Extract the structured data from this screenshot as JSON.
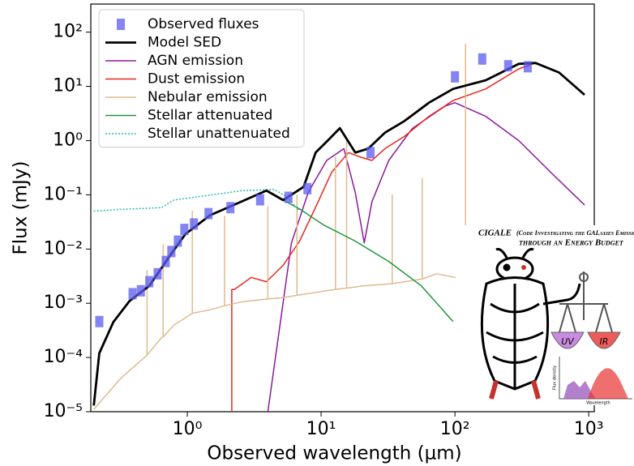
{
  "chart_data": {
    "type": "line",
    "xlabel": "Observed wavelength (μm)",
    "ylabel": "Flux (mJy)",
    "xscale": "log",
    "yscale": "log",
    "xlim": [
      0.19,
      1100
    ],
    "ylim": [
      1e-05,
      330
    ],
    "xticks": [
      {
        "value": 1,
        "label": "10⁰"
      },
      {
        "value": 10,
        "label": "10¹"
      },
      {
        "value": 100,
        "label": "10²"
      },
      {
        "value": 1000,
        "label": "10³"
      }
    ],
    "yticks": [
      {
        "value": 1e-05,
        "label": "10⁻⁵"
      },
      {
        "value": 0.0001,
        "label": "10⁻⁴"
      },
      {
        "value": 0.001,
        "label": "10⁻³"
      },
      {
        "value": 0.01,
        "label": "10⁻²"
      },
      {
        "value": 0.1,
        "label": "10⁻¹"
      },
      {
        "value": 1,
        "label": "10⁰"
      },
      {
        "value": 10,
        "label": "10¹"
      },
      {
        "value": 100,
        "label": "10²"
      }
    ],
    "legend": "upper left",
    "series": [
      {
        "name": "Observed fluxes",
        "color": "#5b5bf0",
        "style": "marker",
        "x": [
          0.22,
          0.39,
          0.45,
          0.52,
          0.6,
          0.69,
          0.76,
          0.85,
          0.95,
          1.12,
          1.44,
          2.1,
          3.5,
          5.7,
          7.9,
          23.4,
          100,
          160,
          250,
          350
        ],
        "values": [
          0.00046,
          0.0015,
          0.0017,
          0.0025,
          0.0035,
          0.0059,
          0.009,
          0.014,
          0.023,
          0.029,
          0.045,
          0.058,
          0.081,
          0.09,
          0.13,
          0.6,
          15,
          32,
          24,
          23
        ]
      },
      {
        "name": "Model SED",
        "color": "#000000",
        "style": "thick",
        "x": [
          0.2,
          0.22,
          0.28,
          0.37,
          0.52,
          0.74,
          0.97,
          1.48,
          2.6,
          3.9,
          5.2,
          7.4,
          9.1,
          11.2,
          13.8,
          18,
          22.5,
          30,
          42,
          64,
          97,
          170,
          300,
          400,
          600,
          930
        ],
        "values": [
          1.3e-05,
          0.00012,
          0.00045,
          0.0011,
          0.0021,
          0.0075,
          0.019,
          0.042,
          0.077,
          0.12,
          0.08,
          0.14,
          0.6,
          1,
          1.7,
          0.6,
          0.71,
          1.4,
          2.3,
          5,
          9,
          13,
          26,
          27,
          18,
          7
        ]
      },
      {
        "name": "AGN emission",
        "color": "#8b1a9b",
        "style": "solid",
        "x": [
          4.0,
          6,
          8,
          11,
          14.8,
          18,
          21,
          24,
          32,
          48,
          84,
          100,
          170,
          300,
          520,
          930
        ],
        "values": [
          1e-05,
          0.013,
          0.11,
          0.43,
          0.71,
          0.11,
          0.013,
          0.075,
          0.43,
          1.67,
          4.3,
          5,
          2.8,
          1,
          0.26,
          0.065
        ]
      },
      {
        "name": "Dust emission",
        "color": "#e8281e",
        "style": "solid",
        "x": [
          2.15,
          2.15,
          2.25,
          3.0,
          3.9,
          5.2,
          6.9,
          9.1,
          12,
          16,
          19.5,
          24,
          30,
          42,
          64,
          97,
          170,
          300,
          400,
          600,
          930
        ],
        "values": [
          1e-05,
          0.0018,
          0.0018,
          0.003,
          0.0025,
          0.005,
          0.014,
          0.059,
          0.26,
          0.6,
          0.5,
          0.43,
          0.71,
          1.2,
          2.8,
          5.5,
          9,
          21,
          27,
          18,
          7
        ]
      },
      {
        "name": "Nebular emission",
        "color": "#dfbb8f",
        "style": "solid",
        "x": [
          0.2,
          0.32,
          0.5,
          0.5,
          0.5,
          0.64,
          0.66,
          0.66,
          0.66,
          0.8,
          1.09,
          1.09,
          1.09,
          1.48,
          1.9,
          1.9,
          1.9,
          2.6,
          4.0,
          4.0,
          4.0,
          5.2,
          6.6,
          6.6,
          6.6,
          10.4,
          12.8,
          12.8,
          12.8,
          15.5,
          15.5,
          15.5,
          21,
          34,
          34,
          34,
          42,
          57,
          57,
          57,
          73,
          100,
          120,
          120,
          120,
          150
        ],
        "values": [
          1.1e-05,
          4.2e-05,
          0.00011,
          0.004,
          0.00011,
          0.00023,
          0.00024,
          0.012,
          0.00024,
          0.0004,
          0.00065,
          0.05,
          0.00065,
          0.00076,
          0.0009,
          0.04,
          0.0009,
          0.00107,
          0.0012,
          0.06,
          0.0012,
          0.00127,
          0.0014,
          0.1,
          0.0014,
          0.00167,
          0.0018,
          0.5,
          0.0018,
          0.0019,
          1.0,
          0.0019,
          0.0021,
          0.0023,
          0.1,
          0.0023,
          0.0025,
          0.0028,
          0.2,
          0.0028,
          0.0035,
          0.003,
          0.0031,
          60,
          0.0031,
          0.0032
        ]
      },
      {
        "name": "Stellar attenuated",
        "color": "#22963a",
        "style": "solid",
        "x": [
          0.2,
          0.22,
          0.28,
          0.37,
          0.52,
          0.74,
          0.97,
          1.48,
          2.6,
          3.9,
          5.2,
          6.9,
          10.4,
          18,
          32,
          56,
          97
        ],
        "values": [
          1.3e-05,
          0.00012,
          0.00045,
          0.0011,
          0.0021,
          0.0075,
          0.019,
          0.042,
          0.077,
          0.12,
          0.08,
          0.055,
          0.028,
          0.014,
          0.0059,
          0.0021,
          0.00046
        ]
      },
      {
        "name": "Stellar unattenuated",
        "color": "#2ab8b8",
        "style": "dotted",
        "x": [
          0.2,
          0.32,
          0.64,
          0.79,
          1.12,
          2.6,
          4.5,
          5.6,
          6.9
        ],
        "values": [
          0.05,
          0.054,
          0.058,
          0.08,
          0.09,
          0.12,
          0.125,
          0.09,
          0.05
        ]
      }
    ]
  },
  "logo": {
    "title": "CIGALE",
    "subtitle": "(Code Investigating the GALaxies Emission)",
    "subtitle2": "through an Energy Budget",
    "bowls": [
      "UV",
      "IR"
    ],
    "ylabel": "Flux density",
    "xlabel": "Wavelength"
  }
}
